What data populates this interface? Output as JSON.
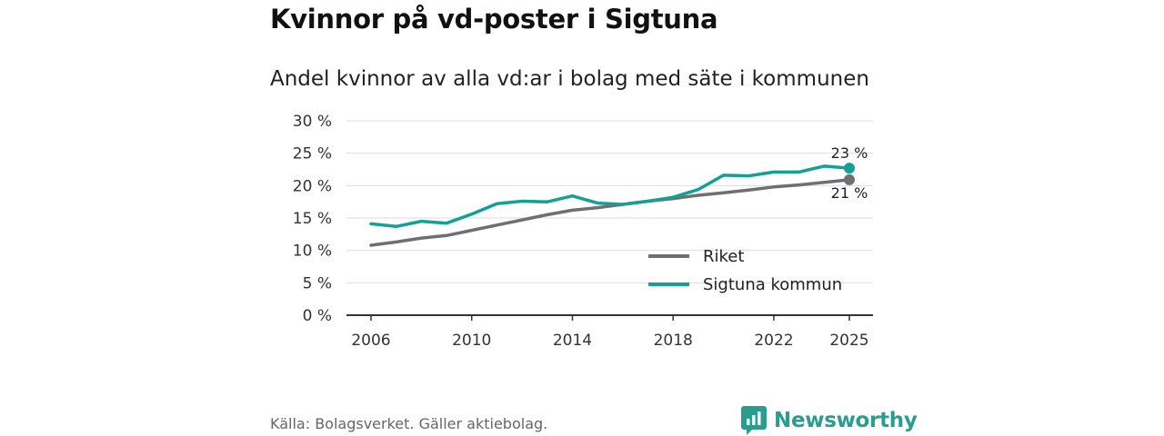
{
  "header": {
    "title": "Kvinnor på vd-poster i Sigtuna",
    "subtitle": "Andel kvinnor av alla vd:ar i bolag med säte i kommunen"
  },
  "footer": {
    "source": "Källa: Bolagsverket. Gäller aktiebolag.",
    "logo_text": "Newsworthy",
    "logo_icon": "bar-chart-speech-bubble-icon"
  },
  "colors": {
    "riket": "#6f6e73",
    "sigtuna": "#14a094",
    "grid": "#dddddd",
    "axis": "#333333",
    "brand": "#2a9d8f"
  },
  "chart_data": {
    "type": "line",
    "title": "Kvinnor på vd-poster i Sigtuna",
    "subtitle": "Andel kvinnor av alla vd:ar i bolag med säte i kommunen",
    "xlim": [
      2006,
      2025
    ],
    "ylim": [
      0,
      30
    ],
    "x_ticks": [
      "2006",
      "2010",
      "2014",
      "2018",
      "2022",
      "2025"
    ],
    "y_ticks": [
      "0 %",
      "5 %",
      "10 %",
      "15 %",
      "20 %",
      "25 %",
      "30 %"
    ],
    "grid": "horizontal",
    "legend_placement": "bottom-right",
    "x": [
      2006,
      2007,
      2008,
      2009,
      2010,
      2011,
      2012,
      2013,
      2014,
      2015,
      2016,
      2017,
      2018,
      2019,
      2020,
      2021,
      2022,
      2023,
      2024,
      2025
    ],
    "series": [
      {
        "name": "Riket",
        "color": "#6f6e73",
        "values": [
          10.8,
          11.3,
          11.9,
          12.3,
          13.1,
          13.9,
          14.7,
          15.5,
          16.2,
          16.6,
          17.1,
          17.6,
          18.0,
          18.5,
          18.9,
          19.3,
          19.8,
          20.1,
          20.5,
          20.9
        ],
        "end_label": "21 %"
      },
      {
        "name": "Sigtuna kommun",
        "color": "#14a094",
        "values": [
          14.1,
          13.7,
          14.5,
          14.2,
          15.6,
          17.2,
          17.6,
          17.5,
          18.4,
          17.3,
          17.1,
          17.6,
          18.2,
          19.4,
          21.6,
          21.5,
          22.1,
          22.1,
          23.0,
          22.7
        ],
        "end_label": "23 %"
      }
    ]
  }
}
